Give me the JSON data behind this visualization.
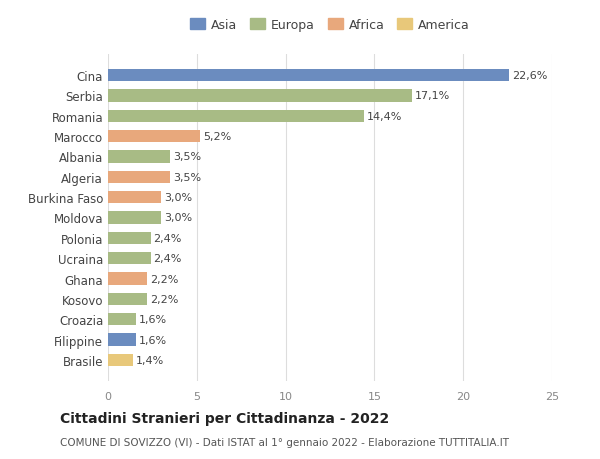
{
  "countries": [
    "Cina",
    "Serbia",
    "Romania",
    "Marocco",
    "Albania",
    "Algeria",
    "Burkina Faso",
    "Moldova",
    "Polonia",
    "Ucraina",
    "Ghana",
    "Kosovo",
    "Croazia",
    "Filippine",
    "Brasile"
  ],
  "values": [
    22.6,
    17.1,
    14.4,
    5.2,
    3.5,
    3.5,
    3.0,
    3.0,
    2.4,
    2.4,
    2.2,
    2.2,
    1.6,
    1.6,
    1.4
  ],
  "labels": [
    "22,6%",
    "17,1%",
    "14,4%",
    "5,2%",
    "3,5%",
    "3,5%",
    "3,0%",
    "3,0%",
    "2,4%",
    "2,4%",
    "2,2%",
    "2,2%",
    "1,6%",
    "1,6%",
    "1,4%"
  ],
  "colors": [
    "#6b8cbf",
    "#a8bb85",
    "#a8bb85",
    "#e8a87c",
    "#a8bb85",
    "#e8a87c",
    "#e8a87c",
    "#a8bb85",
    "#a8bb85",
    "#a8bb85",
    "#e8a87c",
    "#a8bb85",
    "#a8bb85",
    "#6b8cbf",
    "#e8c87a"
  ],
  "regions": [
    "Asia",
    "Europa",
    "Africa",
    "America"
  ],
  "legend_colors": [
    "#6b8cbf",
    "#a8bb85",
    "#e8a87c",
    "#e8c87a"
  ],
  "title": "Cittadini Stranieri per Cittadinanza - 2022",
  "subtitle": "COMUNE DI SOVIZZO (VI) - Dati ISTAT al 1° gennaio 2022 - Elaborazione TUTTITALIA.IT",
  "xlim": [
    0,
    25
  ],
  "xticks": [
    0,
    5,
    10,
    15,
    20,
    25
  ],
  "bg_color": "#ffffff",
  "grid_color": "#dddddd"
}
